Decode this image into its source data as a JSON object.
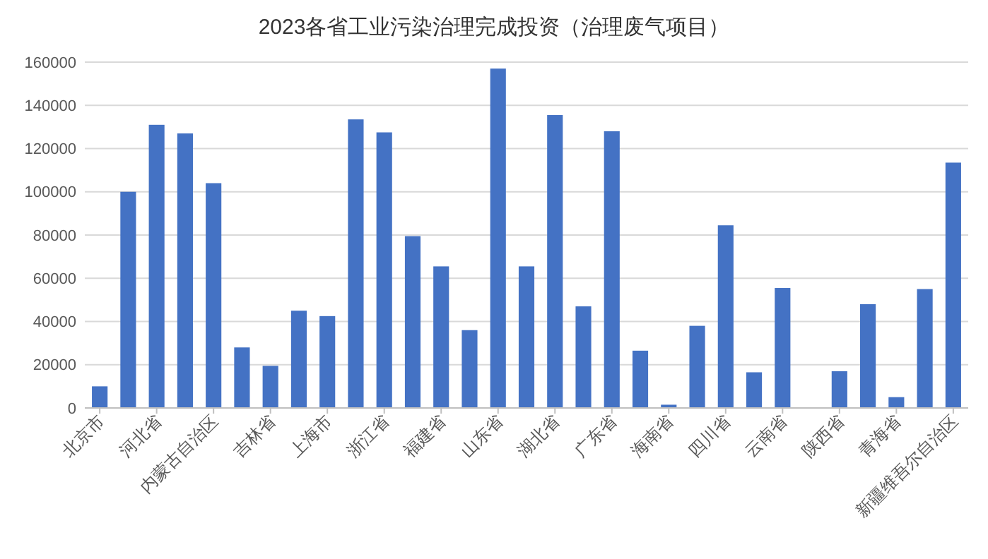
{
  "chart_data": {
    "type": "bar",
    "title": "2023各省工业污染治理完成投资（治理废气项目）",
    "categories": [
      "北京市",
      null,
      "河北省",
      null,
      "内蒙古自治区",
      null,
      "吉林省",
      null,
      "上海市",
      null,
      "浙江省",
      null,
      "福建省",
      null,
      "山东省",
      null,
      "湖北省",
      null,
      "广东省",
      null,
      "海南省",
      null,
      "四川省",
      null,
      "云南省",
      null,
      "陕西省",
      null,
      "青海省",
      null,
      "新疆维吾尔自治区"
    ],
    "values": [
      10000,
      100000,
      131000,
      127000,
      104000,
      28000,
      19500,
      45000,
      42500,
      133500,
      127500,
      79500,
      65500,
      36000,
      157000,
      65500,
      135500,
      47000,
      128000,
      26500,
      1500,
      38000,
      84500,
      16500,
      55500,
      null,
      17000,
      48000,
      5000,
      55000,
      113500
    ],
    "color": "#4472c4",
    "ylim": [
      0,
      160000
    ],
    "yticks": [
      0,
      20000,
      40000,
      60000,
      80000,
      100000,
      120000,
      140000,
      160000
    ],
    "grid": "y"
  }
}
